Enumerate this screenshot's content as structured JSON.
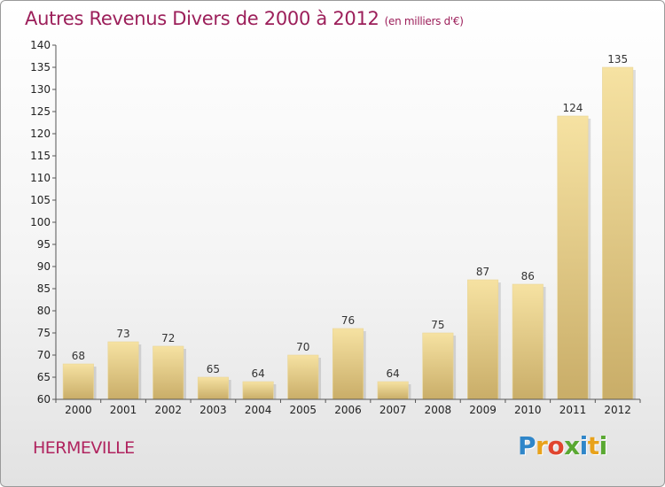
{
  "title": "Autres Revenus Divers de 2000 à 2012",
  "unit": "(en milliers d'€)",
  "commune": "HERMEVILLE",
  "logo": {
    "letters": [
      "P",
      "r",
      "o",
      "x",
      "i",
      "t",
      "i"
    ],
    "colors": [
      "#2f86c9",
      "#e8a21b",
      "#e0452f",
      "#5aa832",
      "#2f86c9",
      "#e8a21b",
      "#5aa832"
    ]
  },
  "colors": {
    "bar_light": "#f6e2a2",
    "bar_dark": "#c9ad68",
    "title": "#9c1f5a"
  },
  "chart_data": {
    "type": "bar",
    "categories": [
      "2000",
      "2001",
      "2002",
      "2003",
      "2004",
      "2005",
      "2006",
      "2007",
      "2008",
      "2009",
      "2010",
      "2011",
      "2012"
    ],
    "values": [
      68,
      73,
      72,
      65,
      64,
      70,
      76,
      64,
      75,
      87,
      86,
      124,
      135
    ],
    "ylim": [
      60,
      140
    ],
    "yticks": [
      60,
      65,
      70,
      75,
      80,
      85,
      90,
      95,
      100,
      105,
      110,
      115,
      120,
      125,
      130,
      135,
      140
    ],
    "grid": false,
    "legend": "none"
  }
}
